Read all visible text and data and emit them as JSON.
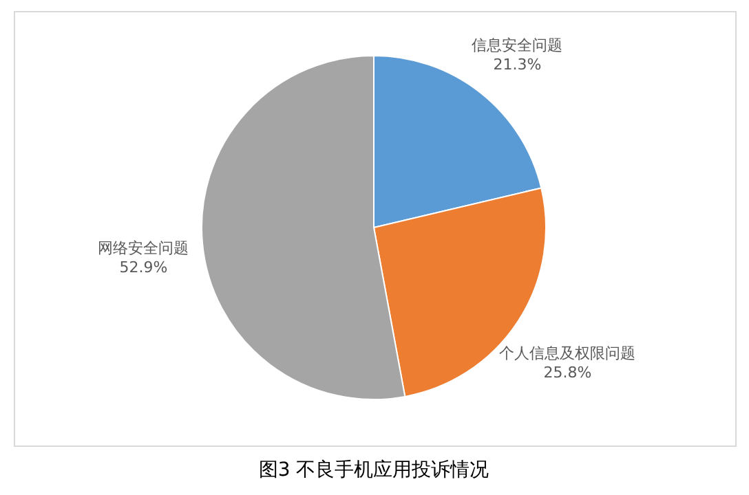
{
  "chart_data": {
    "type": "pie",
    "title": "图3   不良手机应用投诉情况",
    "categories": [
      "信息安全问题",
      "个人信息及权限问题",
      "网络安全问题"
    ],
    "values": [
      21.3,
      25.8,
      52.9
    ],
    "colors": [
      "#5b9bd5",
      "#ed7d31",
      "#a5a5a5"
    ],
    "value_labels": [
      "21.3%",
      "25.8%",
      "52.9%"
    ]
  }
}
